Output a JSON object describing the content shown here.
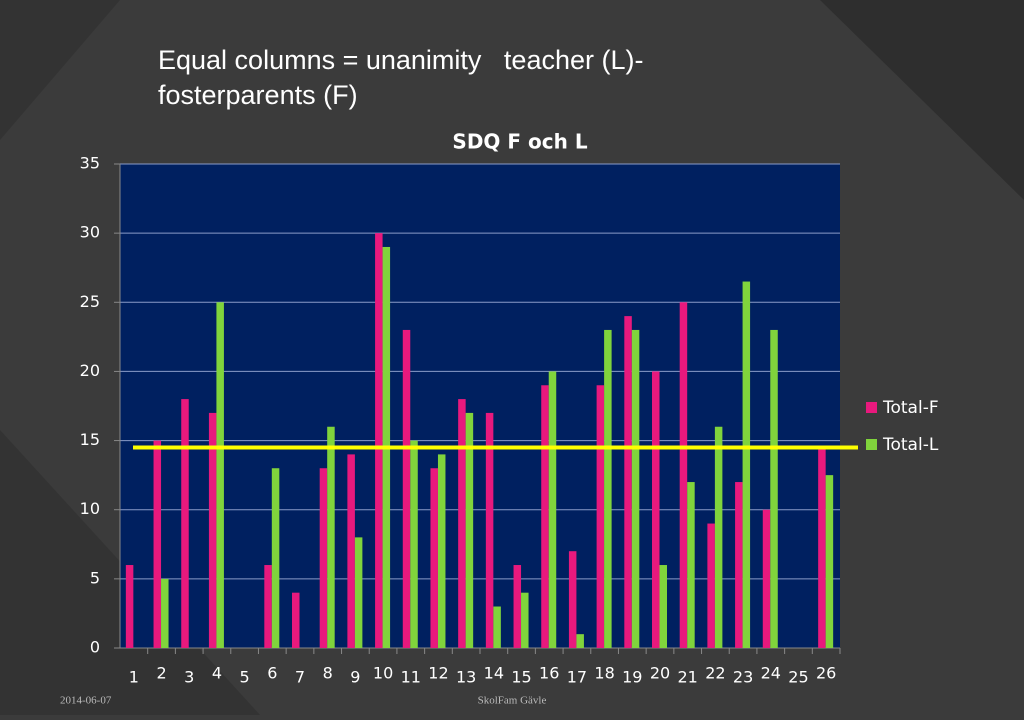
{
  "heading": [
    "Equal columns = unanimity   teacher (L)-",
    "fosterparents (F)"
  ],
  "footer": {
    "date": "2014-06-07",
    "org": "SkolFam Gävle"
  },
  "chart_data": {
    "type": "bar",
    "title": "SDQ  F och L",
    "categories": [
      "1",
      "2",
      "3",
      "4",
      "5",
      "6",
      "7",
      "8",
      "9",
      "10",
      "11",
      "12",
      "13",
      "14",
      "15",
      "16",
      "17",
      "18",
      "19",
      "20",
      "21",
      "22",
      "23",
      "24",
      "25",
      "26"
    ],
    "series": [
      {
        "name": "Total-F",
        "color": "#e8197d",
        "values": [
          6,
          15,
          18,
          17,
          null,
          6,
          4,
          13,
          14,
          30,
          23,
          13,
          18,
          17,
          6,
          19,
          7,
          19,
          24,
          20,
          25,
          9,
          12,
          10,
          null,
          14.5
        ]
      },
      {
        "name": "Total-L",
        "color": "#80d43c",
        "values": [
          null,
          5,
          null,
          25,
          null,
          13,
          null,
          16,
          8,
          29,
          15,
          14,
          17,
          3,
          4,
          20,
          1,
          23,
          23,
          6,
          12,
          16,
          26.5,
          23,
          null,
          12.5
        ]
      }
    ],
    "ylim": [
      0,
      35
    ],
    "yticks": [
      0,
      5,
      10,
      15,
      20,
      25,
      30,
      35
    ],
    "grid": true,
    "reference_line": {
      "value": 14.5,
      "color": "#ffff00"
    },
    "legend": "right",
    "plot_background": "#002060"
  }
}
